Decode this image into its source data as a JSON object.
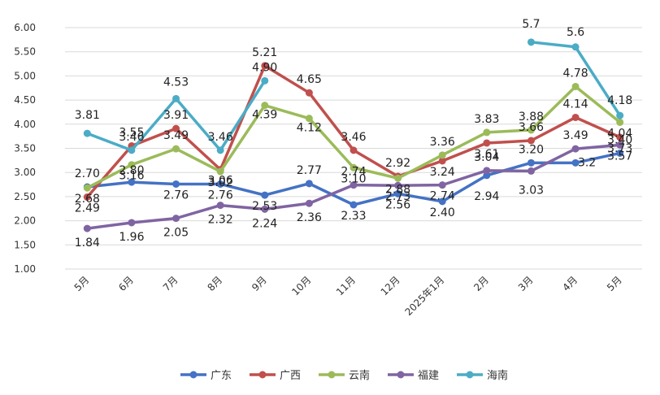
{
  "chart_data": {
    "type": "line",
    "categories": [
      "5月",
      "6月",
      "7月",
      "8月",
      "9月",
      "10月",
      "11月",
      "12月",
      "2025年1月",
      "2月",
      "3月",
      "4月",
      "5月"
    ],
    "ylim": [
      1.0,
      6.0
    ],
    "yticks": [
      "1.00",
      "1.50",
      "2.00",
      "2.50",
      "3.00",
      "3.50",
      "4.00",
      "4.50",
      "5.00",
      "5.50",
      "6.00"
    ],
    "grid": true,
    "legend_position": "bottom",
    "series": [
      {
        "name": "广东",
        "color": "#4472C4",
        "values": [
          2.7,
          2.8,
          2.76,
          2.76,
          2.53,
          2.77,
          2.33,
          2.56,
          2.4,
          2.94,
          3.2,
          3.2,
          3.4
        ],
        "labels": [
          "2.70",
          "2.80",
          "2.76",
          "2.76",
          "2.53",
          "2.77",
          "2.33",
          "2.56",
          "2.40",
          "2.94",
          "3.20",
          "3.2",
          "3.40"
        ]
      },
      {
        "name": "广西",
        "color": "#C0504D",
        "values": [
          2.49,
          3.55,
          3.91,
          3.06,
          5.21,
          4.65,
          3.46,
          2.92,
          3.24,
          3.61,
          3.66,
          4.14,
          3.73
        ],
        "labels": [
          "2.49",
          "3.55",
          "3.91",
          "3.06",
          "5.21",
          "4.65",
          "3.46",
          "2.92",
          "3.24",
          "3.61",
          "3.66",
          "4.14",
          "3.73"
        ]
      },
      {
        "name": "云南",
        "color": "#9BBB59",
        "values": [
          2.68,
          3.16,
          3.49,
          3.02,
          4.39,
          4.12,
          3.1,
          2.88,
          3.36,
          3.83,
          3.88,
          4.78,
          4.04
        ],
        "labels": [
          "2.68",
          "3.16",
          "3.49",
          "3.02",
          "4.39",
          "4.12",
          "3.10",
          "2.88",
          "3.36",
          "3.83",
          "3.88",
          "4.78",
          "4.04"
        ]
      },
      {
        "name": "福建",
        "color": "#8064A2",
        "values": [
          1.84,
          1.96,
          2.05,
          2.32,
          2.24,
          2.36,
          2.74,
          2.73,
          2.74,
          3.04,
          3.03,
          3.49,
          3.57
        ],
        "labels": [
          "1.84",
          "1.96",
          "2.05",
          "2.32",
          "2.24",
          "2.36",
          "2.74",
          "2.73",
          "2.74",
          "3.04",
          "3.03",
          "3.49",
          "3.57"
        ]
      },
      {
        "name": "海南",
        "color": "#4BACC6",
        "values": [
          3.81,
          3.46,
          4.53,
          3.46,
          4.9,
          null,
          null,
          null,
          null,
          null,
          5.7,
          5.6,
          4.18
        ],
        "labels": [
          "3.81",
          "3.46",
          "4.53",
          "3.46",
          "4.90",
          null,
          null,
          null,
          null,
          null,
          "5.7",
          "5.6",
          "4.18"
        ]
      }
    ]
  }
}
